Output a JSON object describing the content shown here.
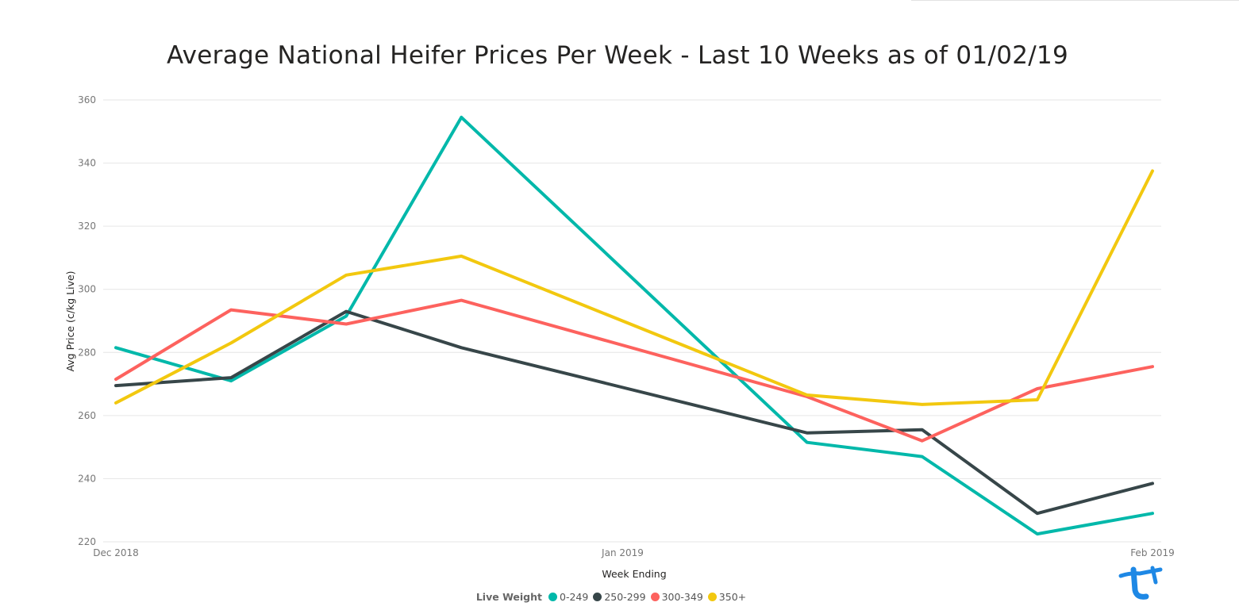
{
  "chart_data": {
    "type": "line",
    "title": "Average National Heifer Prices Per Week - Last 10 Weeks as of 01/02/19",
    "xlabel": "Week Ending",
    "ylabel": "Avg Price (c/kg Live)",
    "ylim": [
      220,
      360
    ],
    "yticks": [
      360,
      340,
      320,
      300,
      280,
      260,
      240,
      220
    ],
    "x_tick_labels": [
      "Dec 2018",
      "Jan 2019",
      "Feb 2019"
    ],
    "grid": true,
    "legend": {
      "title": "Live Weight",
      "position": "bottom"
    },
    "x_points": 10,
    "series": [
      {
        "name": "0-249",
        "color": "#01B8AA",
        "values": [
          281.5,
          271,
          291.5,
          354.5,
          null,
          null,
          251.5,
          247,
          222.5,
          229
        ]
      },
      {
        "name": "250-299",
        "color": "#374649",
        "values": [
          269.5,
          272,
          293,
          281.5,
          null,
          null,
          254.5,
          255.5,
          229,
          238.5
        ]
      },
      {
        "name": "300-349",
        "color": "#FD625E",
        "values": [
          271.5,
          293.5,
          289,
          296.5,
          null,
          null,
          266,
          252,
          268.5,
          275.5
        ]
      },
      {
        "name": "350+",
        "color": "#F2C80F",
        "values": [
          264,
          283,
          304.5,
          310.5,
          null,
          null,
          266.5,
          263.5,
          265,
          337.5
        ]
      }
    ]
  },
  "logo": {
    "name": "logo-icon",
    "color": "#1E88E5"
  }
}
